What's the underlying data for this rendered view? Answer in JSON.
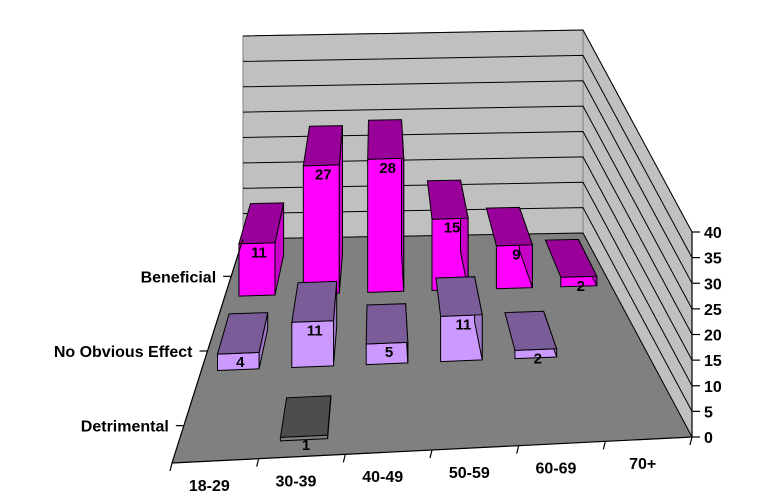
{
  "chart_data": {
    "type": "bar",
    "subtype": "3d-column",
    "title": "",
    "xlabel": "",
    "ylabel": "",
    "ylim": [
      0,
      40
    ],
    "yticks": [
      0,
      5,
      10,
      15,
      20,
      25,
      30,
      35,
      40
    ],
    "categories": [
      "18-29",
      "30-39",
      "40-49",
      "50-59",
      "60-69",
      "70+"
    ],
    "grid": true,
    "series": [
      {
        "name": "Detrimental",
        "color": "#808080",
        "values": [
          null,
          1,
          null,
          null,
          null,
          null
        ]
      },
      {
        "name": "No Obvious Effect",
        "color": "#cc99ff",
        "values": [
          4,
          11,
          5,
          11,
          2,
          null
        ]
      },
      {
        "name": "Beneficial",
        "color": "#ff00ff",
        "values": [
          11,
          27,
          28,
          15,
          9,
          2
        ]
      }
    ]
  }
}
